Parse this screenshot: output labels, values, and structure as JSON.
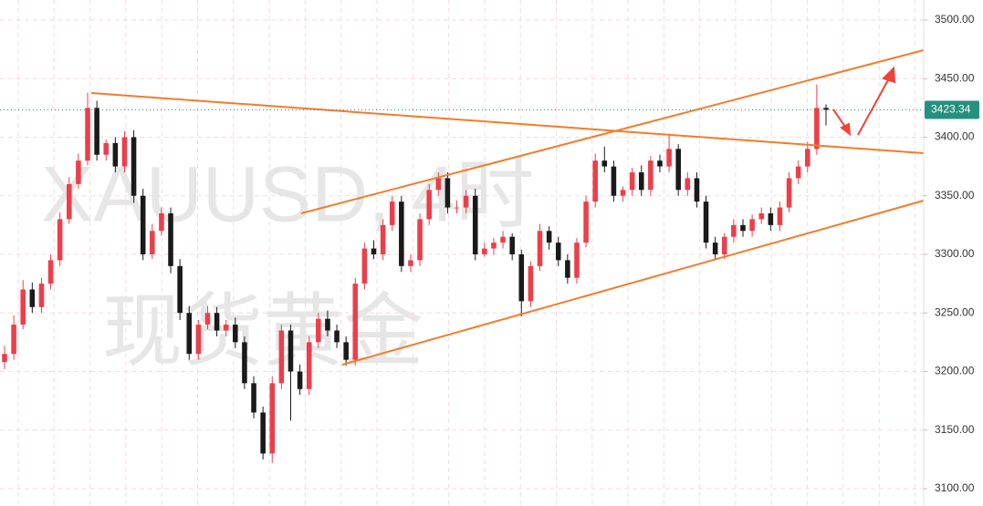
{
  "chart_data": {
    "type": "candlestick",
    "watermark": "XAUUSD, 4时",
    "watermark_sub": "现货黄金",
    "ylim": [
      3085.2,
      3517.1
    ],
    "yticks": [
      {
        "value": 3100,
        "label": "3100.00"
      },
      {
        "value": 3150,
        "label": "3150.00"
      },
      {
        "value": 3200,
        "label": "3200.00"
      },
      {
        "value": 3250,
        "label": "3250.00"
      },
      {
        "value": 3300,
        "label": "3300.00"
      },
      {
        "value": 3350,
        "label": "3350.00"
      },
      {
        "value": 3400,
        "label": "3400.00"
      },
      {
        "value": 3450,
        "label": "3450.00"
      },
      {
        "value": 3500,
        "label": "3500.00"
      }
    ],
    "grid": true,
    "up_color": "#eb3f4b",
    "down_color": "#1a1a1a",
    "last_price": 3423.34,
    "last_price_color": "#26907e",
    "open": [
      3208,
      3215,
      3240,
      3270,
      3255,
      3275,
      3295,
      3330,
      3360,
      3380,
      3425,
      3385,
      3395,
      3375,
      3400,
      3350,
      3300,
      3320,
      3335,
      3290,
      3250,
      3215,
      3240,
      3250,
      3235,
      3240,
      3225,
      3190,
      3165,
      3130,
      3190,
      3235,
      3200,
      3185,
      3225,
      3245,
      3235,
      3225,
      3210,
      3275,
      3305,
      3300,
      3325,
      3345,
      3290,
      3295,
      3330,
      3355,
      3365,
      3340,
      3340,
      3350,
      3300,
      3305,
      3310,
      3315,
      3300,
      3260,
      3290,
      3320,
      3310,
      3295,
      3280,
      3310,
      3345,
      3380,
      3375,
      3350,
      3355,
      3370,
      3355,
      3380,
      3375,
      3390,
      3355,
      3365,
      3345,
      3310,
      3300,
      3315,
      3325,
      3320,
      3330,
      3335,
      3325,
      3340,
      3365,
      3375,
      3390,
      3425
    ],
    "high": [
      3222,
      3248,
      3278,
      3276,
      3280,
      3300,
      3336,
      3366,
      3386,
      3438,
      3431,
      3398,
      3400,
      3405,
      3406,
      3356,
      3326,
      3340,
      3340,
      3296,
      3256,
      3244,
      3256,
      3255,
      3244,
      3246,
      3230,
      3196,
      3170,
      3196,
      3240,
      3240,
      3206,
      3230,
      3250,
      3252,
      3240,
      3230,
      3280,
      3310,
      3312,
      3330,
      3350,
      3350,
      3300,
      3335,
      3360,
      3370,
      3370,
      3346,
      3355,
      3356,
      3310,
      3314,
      3320,
      3318,
      3304,
      3294,
      3326,
      3324,
      3315,
      3300,
      3314,
      3350,
      3386,
      3392,
      3380,
      3358,
      3374,
      3376,
      3384,
      3385,
      3403,
      3394,
      3370,
      3370,
      3350,
      3315,
      3318,
      3330,
      3330,
      3334,
      3340,
      3340,
      3345,
      3370,
      3380,
      3396,
      3445,
      3428
    ],
    "low": [
      3202,
      3210,
      3236,
      3250,
      3250,
      3270,
      3290,
      3326,
      3356,
      3376,
      3380,
      3380,
      3370,
      3370,
      3344,
      3295,
      3296,
      3316,
      3284,
      3244,
      3210,
      3210,
      3236,
      3230,
      3230,
      3220,
      3185,
      3160,
      3125,
      3122,
      3185,
      3158,
      3180,
      3180,
      3220,
      3230,
      3220,
      3205,
      3205,
      3270,
      3296,
      3295,
      3320,
      3285,
      3285,
      3290,
      3325,
      3350,
      3335,
      3335,
      3335,
      3295,
      3298,
      3300,
      3305,
      3295,
      3247,
      3255,
      3286,
      3304,
      3290,
      3275,
      3275,
      3306,
      3340,
      3370,
      3345,
      3345,
      3350,
      3350,
      3350,
      3370,
      3370,
      3350,
      3350,
      3340,
      3305,
      3295,
      3296,
      3310,
      3315,
      3315,
      3326,
      3320,
      3320,
      3336,
      3360,
      3370,
      3385,
      3410
    ],
    "close": [
      3215,
      3240,
      3270,
      3255,
      3275,
      3295,
      3330,
      3360,
      3380,
      3425,
      3385,
      3395,
      3375,
      3400,
      3350,
      3300,
      3320,
      3335,
      3290,
      3250,
      3215,
      3240,
      3250,
      3235,
      3240,
      3225,
      3190,
      3165,
      3130,
      3190,
      3235,
      3200,
      3185,
      3225,
      3245,
      3235,
      3225,
      3210,
      3275,
      3305,
      3300,
      3325,
      3345,
      3290,
      3295,
      3330,
      3355,
      3365,
      3340,
      3340,
      3350,
      3300,
      3305,
      3310,
      3315,
      3300,
      3260,
      3290,
      3320,
      3310,
      3295,
      3280,
      3310,
      3345,
      3380,
      3375,
      3350,
      3355,
      3370,
      3355,
      3380,
      3375,
      3390,
      3355,
      3365,
      3345,
      3310,
      3300,
      3315,
      3325,
      3320,
      3330,
      3335,
      3325,
      3340,
      3365,
      3375,
      3390,
      3425,
      3423.34
    ]
  }
}
